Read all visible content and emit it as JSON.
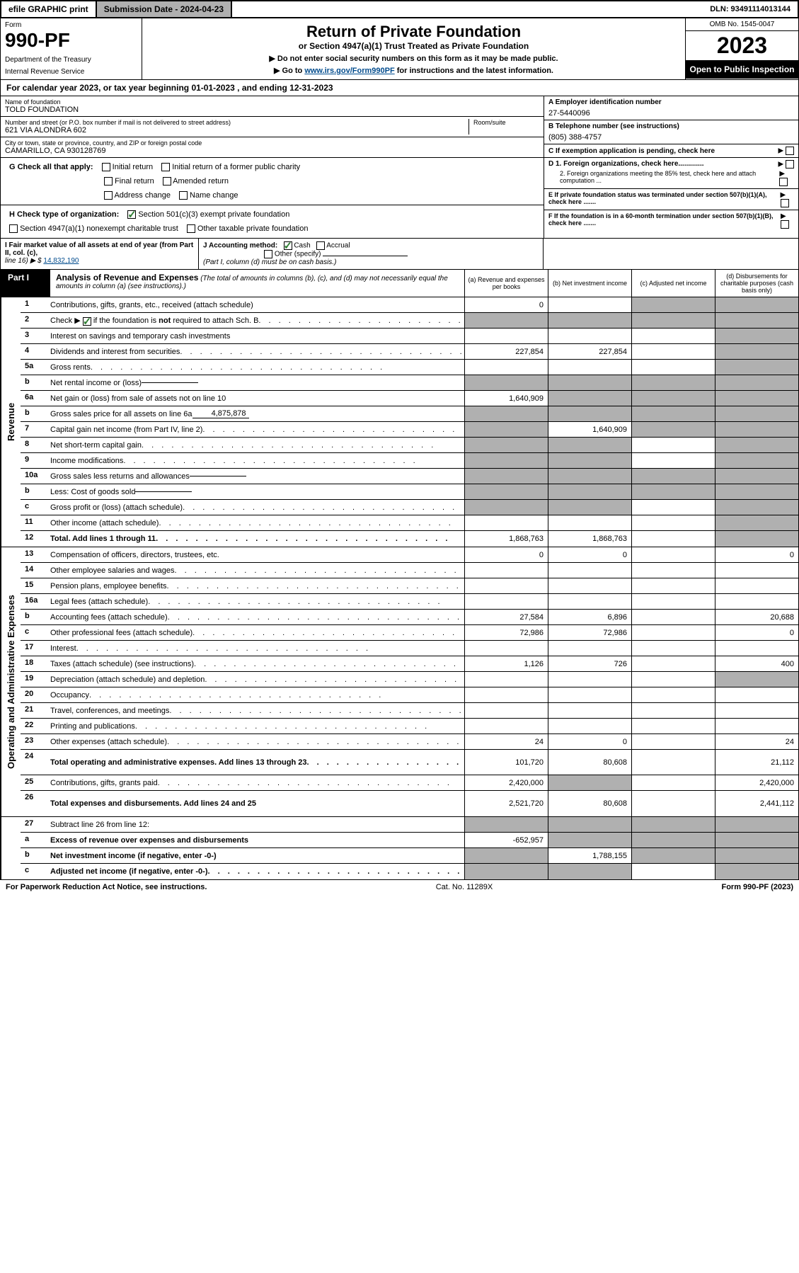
{
  "topbar": {
    "efile": "efile GRAPHIC print",
    "submission": "Submission Date - 2024-04-23",
    "dln": "DLN: 93491114013144"
  },
  "header": {
    "form_label": "Form",
    "form_number": "990-PF",
    "dept1": "Department of the Treasury",
    "dept2": "Internal Revenue Service",
    "title": "Return of Private Foundation",
    "subtitle": "or Section 4947(a)(1) Trust Treated as Private Foundation",
    "instr1": "▶ Do not enter social security numbers on this form as it may be made public.",
    "instr2_pre": "▶ Go to ",
    "instr2_link": "www.irs.gov/Form990PF",
    "instr2_post": " for instructions and the latest information.",
    "omb": "OMB No. 1545-0047",
    "year": "2023",
    "inspection": "Open to Public Inspection"
  },
  "calendar": "For calendar year 2023, or tax year beginning 01-01-2023                           , and ending 12-31-2023",
  "foundation": {
    "name_label": "Name of foundation",
    "name": "TOLD FOUNDATION",
    "addr_label": "Number and street (or P.O. box number if mail is not delivered to street address)",
    "addr": "621 VIA ALONDRA 602",
    "room_label": "Room/suite",
    "city_label": "City or town, state or province, country, and ZIP or foreign postal code",
    "city": "CAMARILLO, CA  930128769",
    "ein_label": "A Employer identification number",
    "ein": "27-5440096",
    "phone_label": "B Telephone number (see instructions)",
    "phone": "(805) 388-4757",
    "c_label": "C If exemption application is pending, check here",
    "d1": "D 1. Foreign organizations, check here.............",
    "d2": "2. Foreign organizations meeting the 85% test, check here and attach computation ...",
    "e": "E  If private foundation status was terminated under section 507(b)(1)(A), check here .......",
    "f": "F  If the foundation is in a 60-month termination under section 507(b)(1)(B), check here .......",
    "g_label": "G Check all that apply:",
    "g_opts": [
      "Initial return",
      "Initial return of a former public charity",
      "Final return",
      "Amended return",
      "Address change",
      "Name change"
    ],
    "h_label": "H Check type of organization:",
    "h_opt1": "Section 501(c)(3) exempt private foundation",
    "h_opt2": "Section 4947(a)(1) nonexempt charitable trust",
    "h_opt3": "Other taxable private foundation",
    "i_label": "I Fair market value of all assets at end of year (from Part II, col. (c),",
    "i_line": "line 16) ▶ $",
    "i_value": "14,832,190",
    "j_label": "J Accounting method:",
    "j_cash": "Cash",
    "j_accrual": "Accrual",
    "j_other": "Other (specify)",
    "j_note": "(Part I, column (d) must be on cash basis.)"
  },
  "part1": {
    "label": "Part I",
    "title": "Analysis of Revenue and Expenses",
    "title_note": "(The total of amounts in columns (b), (c), and (d) may not necessarily equal the amounts in column (a) (see instructions).)",
    "col_a": "(a)   Revenue and expenses per books",
    "col_b": "(b)   Net investment income",
    "col_c": "(c)   Adjusted net income",
    "col_d": "(d)   Disbursements for charitable purposes (cash basis only)"
  },
  "sections": {
    "revenue": "Revenue",
    "expenses": "Operating and Administrative Expenses"
  },
  "lines": [
    {
      "n": "1",
      "d": "Contributions, gifts, grants, etc., received (attach schedule)",
      "a": "0",
      "b": "",
      "c": "s",
      "e": "s"
    },
    {
      "n": "2",
      "d": "Check ▶ ☑ if the foundation is not required to attach Sch. B",
      "dots": true,
      "a": "s",
      "b": "s",
      "c": "s",
      "e": "s",
      "checked": true,
      "bold_not": true
    },
    {
      "n": "3",
      "d": "Interest on savings and temporary cash investments",
      "a": "",
      "b": "",
      "c": "",
      "e": "s"
    },
    {
      "n": "4",
      "d": "Dividends and interest from securities",
      "dots": true,
      "a": "227,854",
      "b": "227,854",
      "c": "",
      "e": "s"
    },
    {
      "n": "5a",
      "d": "Gross rents",
      "dots": true,
      "a": "",
      "b": "",
      "c": "",
      "e": "s"
    },
    {
      "n": "b",
      "d": "Net rental income or (loss)",
      "inline": "",
      "a": "s",
      "b": "s",
      "c": "s",
      "e": "s"
    },
    {
      "n": "6a",
      "d": "Net gain or (loss) from sale of assets not on line 10",
      "a": "1,640,909",
      "b": "s",
      "c": "s",
      "e": "s"
    },
    {
      "n": "b",
      "d": "Gross sales price for all assets on line 6a",
      "inline": "4,875,878",
      "a": "s",
      "b": "s",
      "c": "s",
      "e": "s"
    },
    {
      "n": "7",
      "d": "Capital gain net income (from Part IV, line 2)",
      "dots": true,
      "a": "s",
      "b": "1,640,909",
      "c": "s",
      "e": "s"
    },
    {
      "n": "8",
      "d": "Net short-term capital gain",
      "dots": true,
      "a": "s",
      "b": "s",
      "c": "",
      "e": "s"
    },
    {
      "n": "9",
      "d": "Income modifications",
      "dots": true,
      "a": "s",
      "b": "s",
      "c": "",
      "e": "s"
    },
    {
      "n": "10a",
      "d": "Gross sales less returns and allowances",
      "inline": "",
      "a": "s",
      "b": "s",
      "c": "s",
      "e": "s"
    },
    {
      "n": "b",
      "d": "Less: Cost of goods sold",
      "dots": true,
      "inline": "",
      "a": "s",
      "b": "s",
      "c": "s",
      "e": "s"
    },
    {
      "n": "c",
      "d": "Gross profit or (loss) (attach schedule)",
      "dots": true,
      "a": "s",
      "b": "s",
      "c": "",
      "e": "s"
    },
    {
      "n": "11",
      "d": "Other income (attach schedule)",
      "dots": true,
      "a": "",
      "b": "",
      "c": "",
      "e": "s"
    },
    {
      "n": "12",
      "d": "Total. Add lines 1 through 11",
      "bold": true,
      "dots": true,
      "a": "1,868,763",
      "b": "1,868,763",
      "c": "",
      "e": "s"
    }
  ],
  "exp_lines": [
    {
      "n": "13",
      "d": "Compensation of officers, directors, trustees, etc.",
      "a": "0",
      "b": "0",
      "c": "",
      "e": "0"
    },
    {
      "n": "14",
      "d": "Other employee salaries and wages",
      "dots": true,
      "a": "",
      "b": "",
      "c": "",
      "e": ""
    },
    {
      "n": "15",
      "d": "Pension plans, employee benefits",
      "dots": true,
      "a": "",
      "b": "",
      "c": "",
      "e": ""
    },
    {
      "n": "16a",
      "d": "Legal fees (attach schedule)",
      "dots": true,
      "a": "",
      "b": "",
      "c": "",
      "e": ""
    },
    {
      "n": "b",
      "d": "Accounting fees (attach schedule)",
      "dots": true,
      "a": "27,584",
      "b": "6,896",
      "c": "",
      "e": "20,688"
    },
    {
      "n": "c",
      "d": "Other professional fees (attach schedule)",
      "dots": true,
      "a": "72,986",
      "b": "72,986",
      "c": "",
      "e": "0"
    },
    {
      "n": "17",
      "d": "Interest",
      "dots": true,
      "a": "",
      "b": "",
      "c": "",
      "e": ""
    },
    {
      "n": "18",
      "d": "Taxes (attach schedule) (see instructions)",
      "dots": true,
      "a": "1,126",
      "b": "726",
      "c": "",
      "e": "400"
    },
    {
      "n": "19",
      "d": "Depreciation (attach schedule) and depletion",
      "dots": true,
      "a": "",
      "b": "",
      "c": "",
      "e": "s"
    },
    {
      "n": "20",
      "d": "Occupancy",
      "dots": true,
      "a": "",
      "b": "",
      "c": "",
      "e": ""
    },
    {
      "n": "21",
      "d": "Travel, conferences, and meetings",
      "dots": true,
      "a": "",
      "b": "",
      "c": "",
      "e": ""
    },
    {
      "n": "22",
      "d": "Printing and publications",
      "dots": true,
      "a": "",
      "b": "",
      "c": "",
      "e": ""
    },
    {
      "n": "23",
      "d": "Other expenses (attach schedule)",
      "dots": true,
      "a": "24",
      "b": "0",
      "c": "",
      "e": "24"
    },
    {
      "n": "24",
      "d": "Total operating and administrative expenses. Add lines 13 through 23",
      "bold": true,
      "dots": true,
      "a": "101,720",
      "b": "80,608",
      "c": "",
      "e": "21,112",
      "tall": true
    },
    {
      "n": "25",
      "d": "Contributions, gifts, grants paid",
      "dots": true,
      "a": "2,420,000",
      "b": "s",
      "c": "",
      "e": "2,420,000"
    },
    {
      "n": "26",
      "d": "Total expenses and disbursements. Add lines 24 and 25",
      "bold": true,
      "a": "2,521,720",
      "b": "80,608",
      "c": "",
      "e": "2,441,112",
      "tall": true
    }
  ],
  "final_lines": [
    {
      "n": "27",
      "d": "Subtract line 26 from line 12:",
      "a": "s",
      "b": "s",
      "c": "s",
      "e": "s"
    },
    {
      "n": "a",
      "d": "Excess of revenue over expenses and disbursements",
      "bold": true,
      "a": "-652,957",
      "b": "s",
      "c": "s",
      "e": "s"
    },
    {
      "n": "b",
      "d": "Net investment income (if negative, enter -0-)",
      "bold": true,
      "a": "s",
      "b": "1,788,155",
      "c": "s",
      "e": "s"
    },
    {
      "n": "c",
      "d": "Adjusted net income (if negative, enter -0-)",
      "bold": true,
      "dots": true,
      "a": "s",
      "b": "s",
      "c": "",
      "e": "s"
    }
  ],
  "footer": {
    "left": "For Paperwork Reduction Act Notice, see instructions.",
    "mid": "Cat. No. 11289X",
    "right": "Form 990-PF (2023)"
  }
}
